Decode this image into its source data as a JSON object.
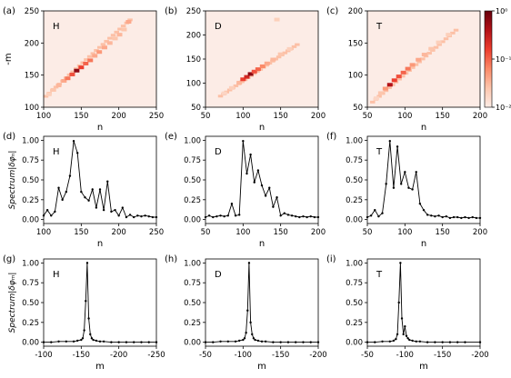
{
  "colorbar": {
    "ticks": [
      {
        "value": 1,
        "label": "10⁰"
      },
      {
        "value": 0.1,
        "label": "10⁻¹"
      },
      {
        "value": 0.01,
        "label": "10⁻²"
      }
    ],
    "colors": [
      "#fcece6",
      "#fcc6ad",
      "#fb8a68",
      "#ec3d2e",
      "#b31218",
      "#67000d"
    ]
  },
  "chart_data": [
    {
      "panel": "(a)",
      "species": "H",
      "type": "heatmap",
      "xlabel": "n",
      "ylabel": "-m",
      "xlim": [
        100,
        250
      ],
      "ylim": [
        100,
        250
      ],
      "xticks": [
        100,
        150,
        200,
        250
      ],
      "yticks": [
        100,
        150,
        200,
        250
      ],
      "band": {
        "n_start": 103,
        "n_end": 215,
        "m_start": 117,
        "m_end": 236
      },
      "cells": [
        [
          107,
          120,
          0.15
        ],
        [
          113,
          127,
          0.2
        ],
        [
          120,
          134,
          0.25
        ],
        [
          127,
          141,
          0.3
        ],
        [
          132,
          145,
          0.45
        ],
        [
          138,
          151,
          0.55
        ],
        [
          144,
          157,
          0.9
        ],
        [
          150,
          162,
          0.6
        ],
        [
          156,
          168,
          0.5
        ],
        [
          162,
          173,
          0.45
        ],
        [
          168,
          180,
          0.3
        ],
        [
          174,
          186,
          0.35
        ],
        [
          181,
          193,
          0.3
        ],
        [
          188,
          200,
          0.25
        ],
        [
          195,
          207,
          0.2
        ],
        [
          201,
          213,
          0.25
        ],
        [
          207,
          221,
          0.2
        ],
        [
          213,
          233,
          0.3
        ]
      ],
      "colorscale": "Reds",
      "cscale": "log",
      "clim": [
        0.01,
        1
      ]
    },
    {
      "panel": "(b)",
      "species": "D",
      "type": "heatmap",
      "xlabel": "n",
      "ylabel": "",
      "xlim": [
        50,
        200
      ],
      "ylim": [
        50,
        250
      ],
      "xticks": [
        50,
        100,
        150,
        200
      ],
      "yticks": [
        50,
        100,
        150,
        200,
        250
      ],
      "band": {
        "n_start": 70,
        "n_end": 172,
        "m_start": 73,
        "m_end": 180
      },
      "cells": [
        [
          75,
          79,
          0.12
        ],
        [
          85,
          90,
          0.15
        ],
        [
          95,
          101,
          0.25
        ],
        [
          100,
          108,
          0.6
        ],
        [
          105,
          113,
          0.7
        ],
        [
          110,
          119,
          0.9
        ],
        [
          115,
          124,
          0.55
        ],
        [
          120,
          129,
          0.5
        ],
        [
          126,
          135,
          0.4
        ],
        [
          132,
          141,
          0.3
        ],
        [
          140,
          149,
          0.25
        ],
        [
          150,
          160,
          0.2
        ],
        [
          162,
          171,
          0.15
        ],
        [
          145,
          232,
          0.15
        ]
      ],
      "colorscale": "Reds",
      "cscale": "log",
      "clim": [
        0.01,
        1
      ]
    },
    {
      "panel": "(c)",
      "species": "T",
      "type": "heatmap",
      "xlabel": "n",
      "ylabel": "",
      "xlim": [
        50,
        200
      ],
      "ylim": [
        50,
        200
      ],
      "xticks": [
        50,
        100,
        150,
        200
      ],
      "yticks": [
        50,
        100,
        150,
        200
      ],
      "band": {
        "n_start": 57,
        "n_end": 168,
        "m_start": 58,
        "m_end": 170
      },
      "cells": [
        [
          62,
          64,
          0.12
        ],
        [
          68,
          72,
          0.2
        ],
        [
          74,
          79,
          0.35
        ],
        [
          80,
          85,
          0.8
        ],
        [
          86,
          92,
          0.6
        ],
        [
          92,
          98,
          0.55
        ],
        [
          98,
          104,
          0.5
        ],
        [
          104,
          110,
          0.45
        ],
        [
          110,
          116,
          0.35
        ],
        [
          118,
          124,
          0.3
        ],
        [
          126,
          132,
          0.25
        ],
        [
          135,
          141,
          0.2
        ],
        [
          145,
          151,
          0.15
        ],
        [
          158,
          163,
          0.15
        ]
      ],
      "colorscale": "Reds",
      "cscale": "log",
      "clim": [
        0.01,
        1
      ]
    },
    {
      "panel": "(d)",
      "species": "H",
      "type": "line",
      "xlabel": "n",
      "ylabel": "Spectrum|δφₙ|",
      "xlim": [
        100,
        250
      ],
      "ylim": [
        -0.05,
        1.05
      ],
      "xticks": [
        100,
        150,
        200,
        250
      ],
      "yticks": [
        0.0,
        0.25,
        0.5,
        0.75,
        1.0
      ],
      "x": [
        100,
        105,
        110,
        115,
        120,
        125,
        130,
        135,
        140,
        145,
        150,
        155,
        160,
        165,
        170,
        175,
        180,
        185,
        190,
        195,
        200,
        205,
        210,
        215,
        220,
        225,
        230,
        235,
        240,
        245,
        250
      ],
      "y": [
        0.05,
        0.12,
        0.05,
        0.1,
        0.4,
        0.25,
        0.35,
        0.55,
        0.99,
        0.84,
        0.35,
        0.28,
        0.24,
        0.38,
        0.15,
        0.38,
        0.12,
        0.48,
        0.1,
        0.12,
        0.05,
        0.15,
        0.03,
        0.06,
        0.03,
        0.05,
        0.04,
        0.05,
        0.04,
        0.03,
        0.03
      ]
    },
    {
      "panel": "(e)",
      "species": "D",
      "type": "line",
      "xlabel": "n",
      "ylabel": "",
      "xlim": [
        50,
        200
      ],
      "ylim": [
        -0.05,
        1.05
      ],
      "xticks": [
        50,
        100,
        150,
        200
      ],
      "yticks": [
        0.0,
        0.25,
        0.5,
        0.75,
        1.0
      ],
      "x": [
        50,
        55,
        60,
        65,
        70,
        75,
        80,
        85,
        90,
        95,
        100,
        105,
        110,
        115,
        120,
        125,
        130,
        135,
        140,
        145,
        150,
        155,
        160,
        165,
        170,
        175,
        180,
        185,
        190,
        195,
        200
      ],
      "y": [
        0.03,
        0.05,
        0.03,
        0.04,
        0.05,
        0.04,
        0.05,
        0.2,
        0.05,
        0.06,
        0.99,
        0.58,
        0.82,
        0.47,
        0.62,
        0.43,
        0.3,
        0.4,
        0.16,
        0.28,
        0.05,
        0.08,
        0.06,
        0.05,
        0.04,
        0.03,
        0.04,
        0.03,
        0.04,
        0.03,
        0.03
      ]
    },
    {
      "panel": "(f)",
      "species": "T",
      "type": "line",
      "xlabel": "n",
      "ylabel": "",
      "xlim": [
        50,
        200
      ],
      "ylim": [
        -0.05,
        1.05
      ],
      "xticks": [
        50,
        100,
        150,
        200
      ],
      "yticks": [
        0.0,
        0.25,
        0.5,
        0.75,
        1.0
      ],
      "x": [
        50,
        55,
        60,
        65,
        70,
        75,
        80,
        85,
        90,
        95,
        100,
        105,
        110,
        115,
        120,
        125,
        130,
        135,
        140,
        145,
        150,
        155,
        160,
        165,
        170,
        175,
        180,
        185,
        190,
        195,
        200
      ],
      "y": [
        0.03,
        0.05,
        0.12,
        0.04,
        0.08,
        0.45,
        0.99,
        0.4,
        0.92,
        0.45,
        0.6,
        0.4,
        0.38,
        0.6,
        0.2,
        0.12,
        0.06,
        0.05,
        0.04,
        0.05,
        0.03,
        0.04,
        0.02,
        0.03,
        0.03,
        0.02,
        0.03,
        0.02,
        0.03,
        0.02,
        0.02
      ]
    },
    {
      "panel": "(g)",
      "species": "H",
      "type": "line",
      "xlabel": "m",
      "ylabel": "Spectrum|δφₘ|",
      "xlim": [
        -100,
        -250
      ],
      "ylim": [
        -0.05,
        1.05
      ],
      "xticks": [
        -100,
        -150,
        -200,
        -250
      ],
      "yticks": [
        0.0,
        0.25,
        0.5,
        0.75,
        1.0
      ],
      "x": [
        -100,
        -110,
        -120,
        -130,
        -140,
        -145,
        -150,
        -152,
        -154,
        -156,
        -158,
        -160,
        -162,
        -164,
        -166,
        -170,
        -175,
        -180,
        -190,
        -200,
        -210,
        -220,
        -230,
        -240,
        -250
      ],
      "y": [
        0.0,
        0.0,
        0.01,
        0.01,
        0.01,
        0.02,
        0.03,
        0.05,
        0.15,
        0.52,
        1.0,
        0.3,
        0.1,
        0.05,
        0.03,
        0.02,
        0.01,
        0.01,
        0.0,
        0.0,
        0.0,
        0.0,
        0.0,
        0.0,
        0.0
      ]
    },
    {
      "panel": "(h)",
      "species": "D",
      "type": "line",
      "xlabel": "m",
      "ylabel": "",
      "xlim": [
        -50,
        -200
      ],
      "ylim": [
        -0.05,
        1.05
      ],
      "xticks": [
        -50,
        -100,
        -150,
        -200
      ],
      "yticks": [
        0.0,
        0.25,
        0.5,
        0.75,
        1.0
      ],
      "x": [
        -50,
        -60,
        -70,
        -80,
        -90,
        -95,
        -100,
        -102,
        -104,
        -106,
        -108,
        -110,
        -112,
        -114,
        -116,
        -120,
        -125,
        -130,
        -140,
        -150,
        -160,
        -170,
        -180,
        -190,
        -200
      ],
      "y": [
        0.0,
        0.0,
        0.01,
        0.01,
        0.01,
        0.02,
        0.03,
        0.05,
        0.12,
        0.4,
        1.0,
        0.25,
        0.1,
        0.05,
        0.03,
        0.02,
        0.01,
        0.01,
        0.0,
        0.0,
        0.0,
        0.0,
        0.0,
        0.0,
        0.0
      ]
    },
    {
      "panel": "(i)",
      "species": "T",
      "type": "line",
      "xlabel": "m",
      "ylabel": "",
      "xlim": [
        -50,
        -200
      ],
      "ylim": [
        -0.05,
        1.05
      ],
      "xticks": [
        -50,
        -100,
        -150,
        -200
      ],
      "yticks": [
        0.0,
        0.25,
        0.5,
        0.75,
        1.0
      ],
      "x": [
        -50,
        -60,
        -70,
        -80,
        -85,
        -88,
        -90,
        -92,
        -94,
        -96,
        -98,
        -100,
        -102,
        -104,
        -106,
        -110,
        -115,
        -120,
        -130,
        -140,
        -150,
        -160,
        -170,
        -180,
        -200
      ],
      "y": [
        0.0,
        0.0,
        0.01,
        0.01,
        0.02,
        0.04,
        0.1,
        0.5,
        1.0,
        0.3,
        0.1,
        0.2,
        0.08,
        0.05,
        0.03,
        0.02,
        0.01,
        0.01,
        0.0,
        0.0,
        0.0,
        0.0,
        0.0,
        0.0,
        0.0
      ]
    }
  ]
}
